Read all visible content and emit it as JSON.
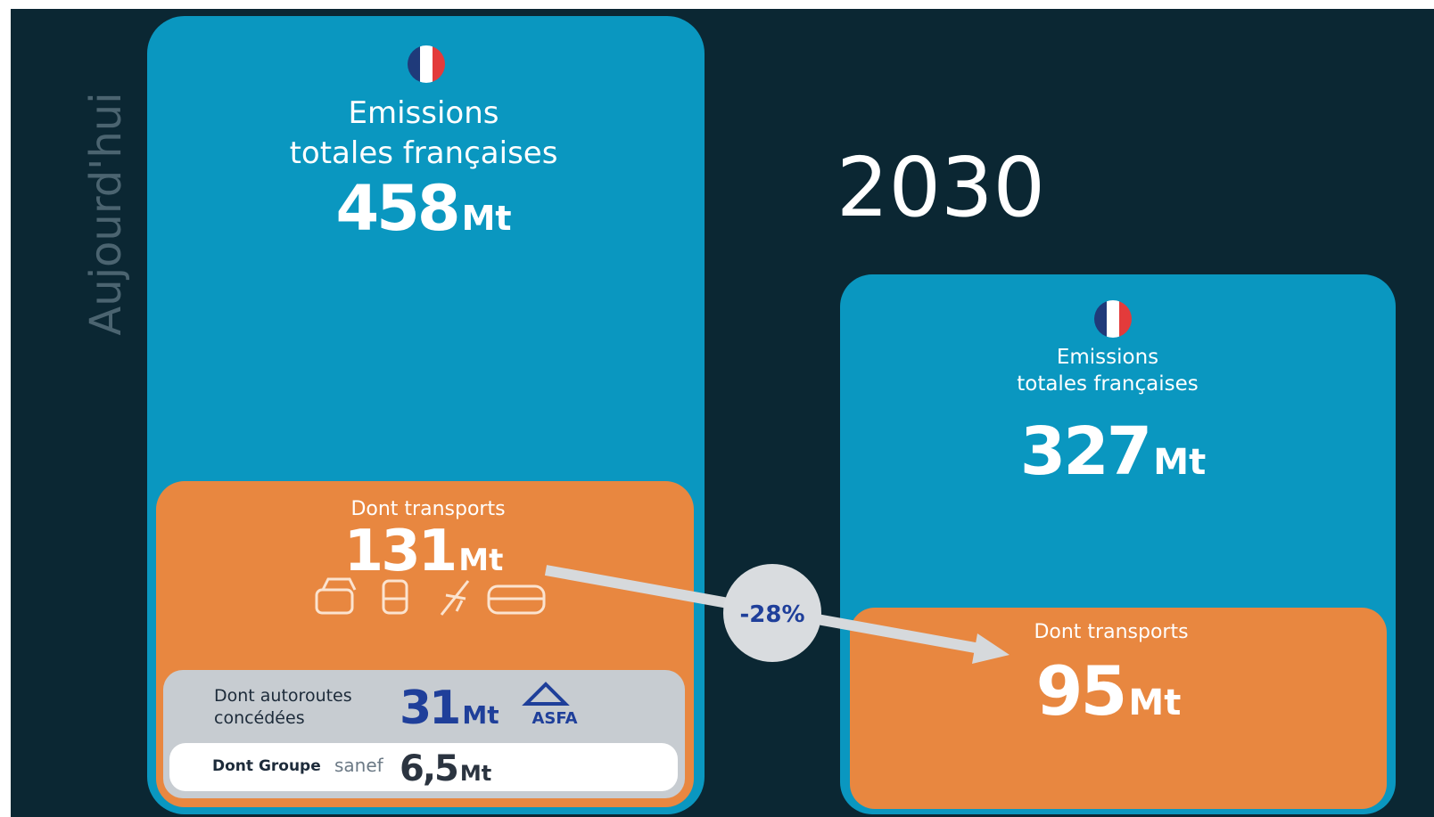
{
  "side_label": "Aujourd'hui",
  "year": "2030",
  "today": {
    "title_line1": "Emissions",
    "title_line2": "totales françaises",
    "total": "458",
    "total_unit": "Mt",
    "transport_label": "Dont transports",
    "transport": "131",
    "transport_unit": "Mt",
    "motorways_line1": "Dont autoroutes",
    "motorways_line2": "concédées",
    "motorways": "31",
    "motorways_unit": "Mt",
    "motorways_logo": "ASFA",
    "group_label": "Dont Groupe",
    "group_logo": "sanef",
    "group": "6,5",
    "group_unit": "Mt"
  },
  "change": "-28%",
  "future": {
    "title_line1": "Emissions",
    "title_line2": "totales françaises",
    "total": "327",
    "total_unit": "Mt",
    "transport_label": "Dont transports",
    "transport": "95",
    "transport_unit": "Mt"
  }
}
